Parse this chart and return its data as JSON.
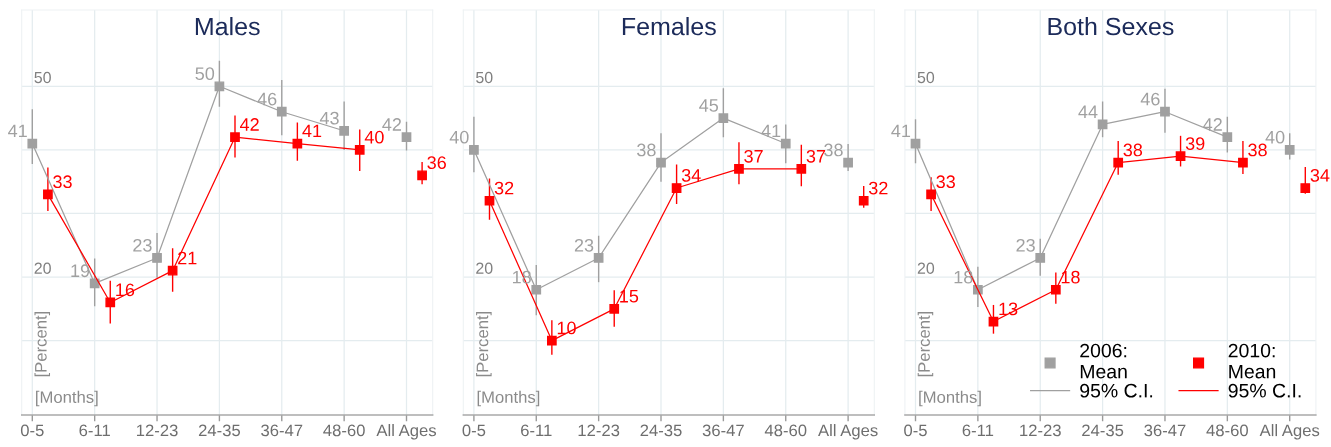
{
  "chart_data": [
    {
      "type": "line",
      "title": "Males",
      "xlabel": "[Months]",
      "ylabel": "[Percent]",
      "categories": [
        "0-5",
        "6-11",
        "12-23",
        "24-35",
        "36-47",
        "48-60",
        "All Ages"
      ],
      "ylim": [
        -1.7,
        62
      ],
      "yticks": [
        {
          "value": 10,
          "label": null
        },
        20,
        {
          "value": 30,
          "label": null
        },
        {
          "value": 40,
          "label": null
        },
        50
      ],
      "grid": true,
      "marker": "square",
      "line_style": "solid",
      "data_labels": true,
      "series": [
        {
          "color": "#a0a0a0",
          "values": [
            41,
            19,
            23,
            50,
            46,
            43,
            null
          ],
          "errors": [
            [
              37.9,
              46.3
            ],
            [
              15.5,
              22.8
            ],
            [
              20.0,
              26.8
            ],
            [
              46.9,
              53.9
            ],
            [
              42.4,
              50.9
            ],
            [
              40.1,
              47.5
            ],
            null
          ]
        },
        {
          "color": "#ff0000",
          "values": [
            33,
            16,
            21,
            42,
            41,
            40,
            null
          ],
          "errors": [
            [
              30.5,
              37.1
            ],
            [
              12.8,
              19.3
            ],
            [
              17.8,
              24.4
            ],
            [
              38.9,
              45.3
            ],
            [
              38.4,
              44.2
            ],
            [
              36.8,
              43.1
            ],
            null
          ]
        },
        {
          "type": "scatter",
          "color": "#a0a0a0",
          "values": [
            null,
            null,
            null,
            null,
            null,
            null,
            42
          ],
          "errors": [
            null,
            null,
            null,
            null,
            null,
            null,
            [
              40.0,
              44.3
            ]
          ]
        },
        {
          "type": "scatter",
          "color": "#ff0000",
          "values": [
            null,
            null,
            null,
            null,
            null,
            null,
            36
          ],
          "errors": [
            null,
            null,
            null,
            null,
            null,
            null,
            [
              34.7,
              38.0
            ]
          ]
        }
      ]
    },
    {
      "type": "line",
      "title": "Females",
      "xlabel": "[Months]",
      "ylabel": "[Percent]",
      "categories": [
        "0-5",
        "6-11",
        "12-23",
        "24-35",
        "36-47",
        "48-60",
        "All Ages"
      ],
      "ylim": [
        -1.7,
        62
      ],
      "yticks": [
        {
          "value": 10,
          "label": null
        },
        20,
        {
          "value": 30,
          "label": null
        },
        {
          "value": 40,
          "label": null
        },
        50
      ],
      "grid": true,
      "marker": "square",
      "line_style": "solid",
      "data_labels": true,
      "series": [
        {
          "color": "#a0a0a0",
          "values": [
            40,
            18,
            23,
            38,
            45,
            41,
            null
          ],
          "errors": [
            [
              36.6,
              45.1
            ],
            [
              14.1,
              21.8
            ],
            [
              19.3,
              26.4
            ],
            [
              35.1,
              42.5
            ],
            [
              42.1,
              49.6
            ],
            [
              38.0,
              43.9
            ],
            null
          ]
        },
        {
          "color": "#ff0000",
          "values": [
            32,
            10,
            15,
            34,
            37,
            37,
            null
          ],
          "errors": [
            [
              29.1,
              35.4
            ],
            [
              7.9,
              13.1
            ],
            [
              12.3,
              17.8
            ],
            [
              31.6,
              37.6
            ],
            [
              34.7,
              41.1
            ],
            [
              34.4,
              40.7
            ],
            null
          ]
        },
        {
          "type": "scatter",
          "color": "#a0a0a0",
          "values": [
            null,
            null,
            null,
            null,
            null,
            null,
            38
          ],
          "errors": [
            null,
            null,
            null,
            null,
            null,
            null,
            [
              36.8,
              40.8
            ]
          ]
        },
        {
          "type": "scatter",
          "color": "#ff0000",
          "values": [
            null,
            null,
            null,
            null,
            null,
            null,
            32
          ],
          "errors": [
            null,
            null,
            null,
            null,
            null,
            null,
            [
              31.0,
              34.2
            ]
          ]
        }
      ]
    },
    {
      "type": "line",
      "title": "Both Sexes",
      "xlabel": "[Months]",
      "ylabel": "[Percent]",
      "categories": [
        "0-5",
        "6-11",
        "12-23",
        "24-35",
        "36-47",
        "48-60",
        "All Ages"
      ],
      "ylim": [
        -1.7,
        62
      ],
      "yticks": [
        {
          "value": 10,
          "label": null
        },
        20,
        {
          "value": 30,
          "label": null
        },
        {
          "value": 40,
          "label": null
        },
        50
      ],
      "grid": true,
      "marker": "square",
      "line_style": "solid",
      "data_labels": true,
      "legend": "bottom right",
      "annotations": [
        "95% C.I.",
        "95% C.I."
      ],
      "series": [
        {
          "name": "2006:\nMean",
          "color": "#a0a0a0",
          "values": [
            41,
            18,
            23,
            44,
            46,
            42,
            null
          ],
          "errors": [
            [
              38.0,
              44.7
            ],
            [
              15.4,
              21.5
            ],
            [
              20.3,
              25.9
            ],
            [
              42.1,
              47.5
            ],
            [
              42.8,
              49.5
            ],
            [
              39.7,
              45.1
            ],
            null
          ]
        },
        {
          "name": "2010:\nMean",
          "color": "#ff0000",
          "values": [
            33,
            13,
            18,
            38,
            39,
            38,
            null
          ],
          "errors": [
            [
              30.5,
              35.6
            ],
            [
              11.2,
              15.5
            ],
            [
              15.9,
              20.6
            ],
            [
              36.2,
              41.3
            ],
            [
              37.5,
              42.1
            ],
            [
              36.3,
              41.3
            ],
            null
          ]
        },
        {
          "type": "scatter",
          "color": "#a0a0a0",
          "values": [
            null,
            null,
            null,
            null,
            null,
            null,
            40
          ],
          "errors": [
            null,
            null,
            null,
            null,
            null,
            null,
            [
              38.6,
              42.5
            ]
          ]
        },
        {
          "type": "scatter",
          "color": "#ff0000",
          "values": [
            null,
            null,
            null,
            null,
            null,
            null,
            34
          ],
          "errors": [
            null,
            null,
            null,
            null,
            null,
            null,
            [
              33.2,
              37.2
            ]
          ]
        }
      ]
    }
  ]
}
